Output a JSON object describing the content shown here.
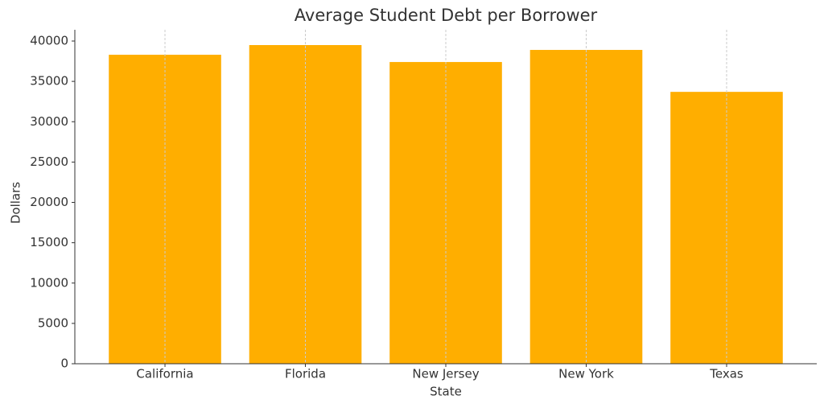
{
  "chart_data": {
    "type": "bar",
    "title": "Average Student Debt per Borrower",
    "x_label": "State",
    "y_label": "Dollars",
    "categories": [
      "California",
      "Florida",
      "New Jersey",
      "New York",
      "Texas"
    ],
    "values": [
      38300,
      39500,
      37400,
      38900,
      33700
    ],
    "color": "#ffae00",
    "ylim": [
      0,
      40000
    ],
    "yticks": [
      0,
      5000,
      10000,
      15000,
      20000,
      25000,
      30000,
      35000,
      40000
    ],
    "grid": "x"
  }
}
